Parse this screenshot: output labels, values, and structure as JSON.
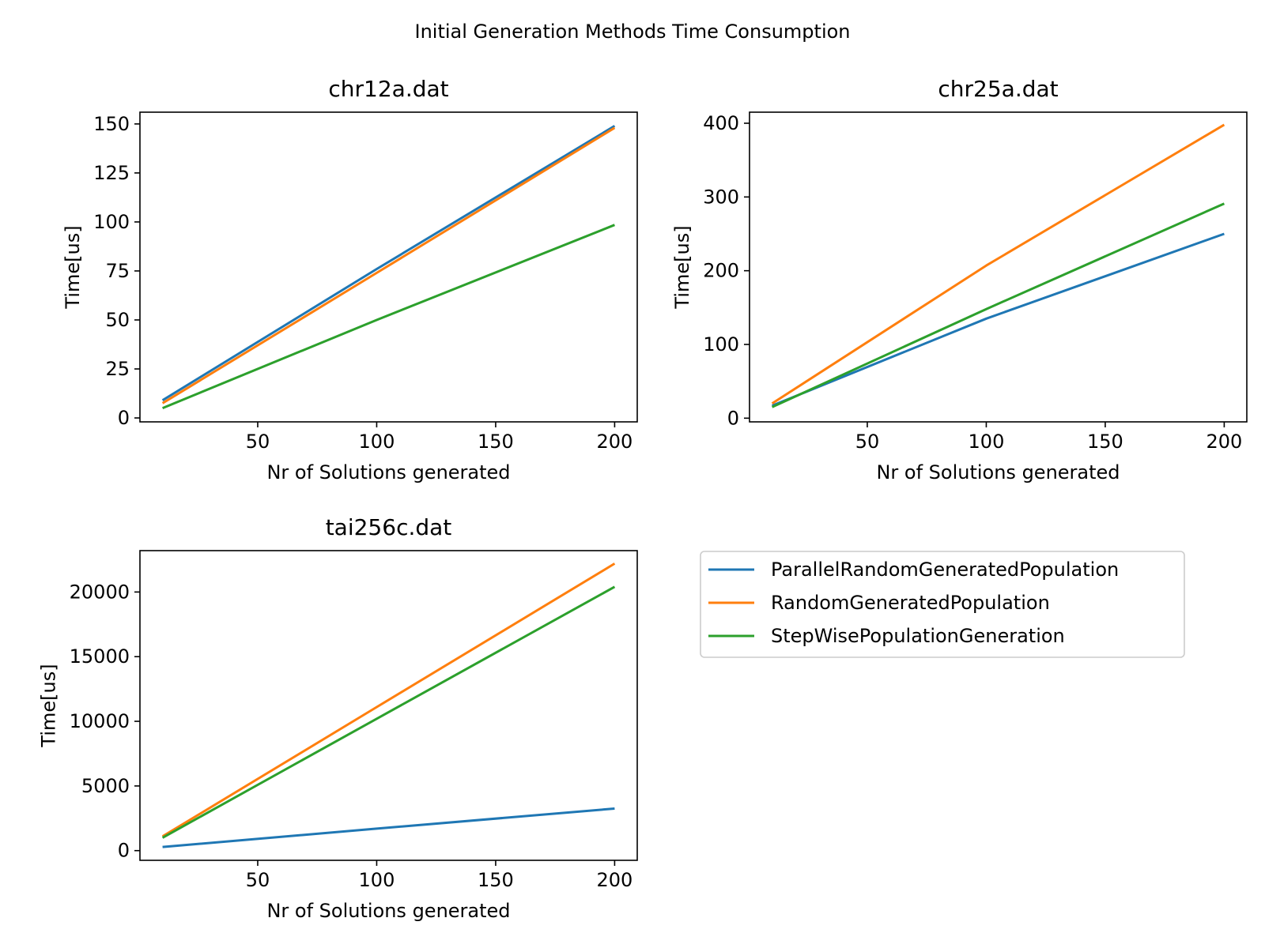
{
  "figure": {
    "title": "Initial Generation Methods Time Consumption"
  },
  "legend": {
    "placement": "bottom-right panel",
    "items": [
      {
        "label": "ParallelRandomGeneratedPopulation",
        "color": "#1f77b4"
      },
      {
        "label": "RandomGeneratedPopulation",
        "color": "#ff7f0e"
      },
      {
        "label": "StepWisePopulationGeneration",
        "color": "#2ca02c"
      }
    ]
  },
  "chart_data": [
    {
      "type": "line",
      "title": "chr12a.dat",
      "xlabel": "Nr of Solutions generated",
      "ylabel": "Time[us]",
      "xlim": [
        0.5,
        209.5
      ],
      "ylim": [
        -2,
        156
      ],
      "xticks": [
        50,
        100,
        150,
        200
      ],
      "yticks": [
        0,
        25,
        50,
        75,
        100,
        125,
        150
      ],
      "grid": false,
      "x": [
        10,
        100,
        200
      ],
      "series": [
        {
          "name": "ParallelRandomGeneratedPopulation",
          "color": "#1f77b4",
          "values": [
            9,
            76,
            149
          ]
        },
        {
          "name": "RandomGeneratedPopulation",
          "color": "#ff7f0e",
          "values": [
            7.5,
            74,
            148
          ]
        },
        {
          "name": "StepWisePopulationGeneration",
          "color": "#2ca02c",
          "values": [
            5,
            50,
            98.5
          ]
        }
      ]
    },
    {
      "type": "line",
      "title": "chr25a.dat",
      "xlabel": "Nr of Solutions generated",
      "ylabel": "Time[us]",
      "xlim": [
        0.5,
        209.5
      ],
      "ylim": [
        -5,
        415
      ],
      "xticks": [
        50,
        100,
        150,
        200
      ],
      "yticks": [
        0,
        100,
        200,
        300,
        400
      ],
      "grid": false,
      "x": [
        10,
        100,
        200
      ],
      "series": [
        {
          "name": "ParallelRandomGeneratedPopulation",
          "color": "#1f77b4",
          "values": [
            17,
            135,
            250
          ]
        },
        {
          "name": "RandomGeneratedPopulation",
          "color": "#ff7f0e",
          "values": [
            20,
            207,
            398
          ]
        },
        {
          "name": "StepWisePopulationGeneration",
          "color": "#2ca02c",
          "values": [
            15,
            148,
            291
          ]
        }
      ]
    },
    {
      "type": "line",
      "title": "tai256c.dat",
      "xlabel": "Nr of Solutions generated",
      "ylabel": "Time[us]",
      "xlim": [
        0.5,
        209.5
      ],
      "ylim": [
        -750,
        23200
      ],
      "xticks": [
        50,
        100,
        150,
        200
      ],
      "yticks": [
        0,
        5000,
        10000,
        15000,
        20000
      ],
      "grid": false,
      "x": [
        10,
        100,
        200
      ],
      "series": [
        {
          "name": "ParallelRandomGeneratedPopulation",
          "color": "#1f77b4",
          "values": [
            280,
            1700,
            3250
          ]
        },
        {
          "name": "RandomGeneratedPopulation",
          "color": "#ff7f0e",
          "values": [
            1100,
            11100,
            22200
          ]
        },
        {
          "name": "StepWisePopulationGeneration",
          "color": "#2ca02c",
          "values": [
            1000,
            10200,
            20400
          ]
        }
      ]
    }
  ]
}
